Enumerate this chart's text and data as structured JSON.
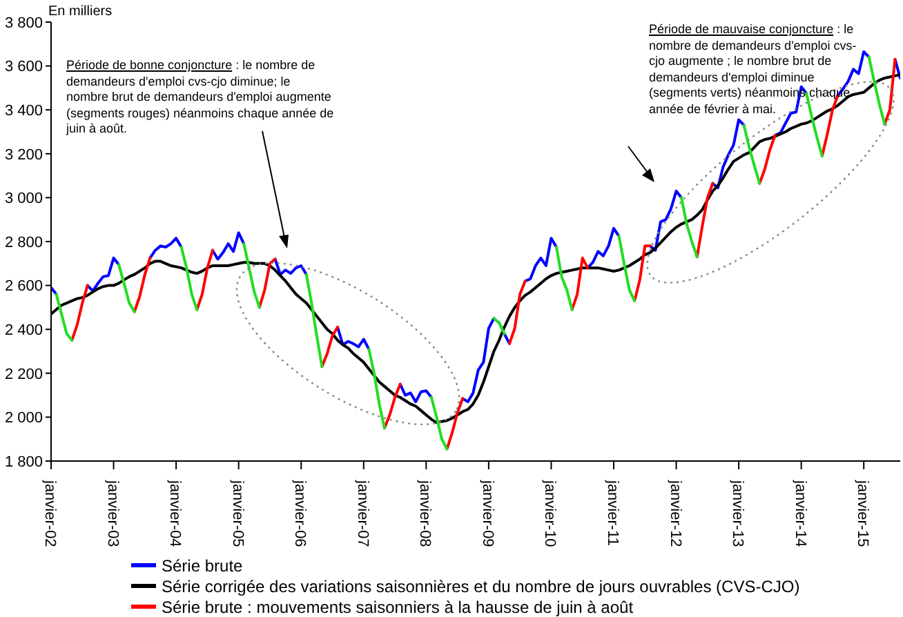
{
  "chart_data": {
    "type": "line",
    "categories": [
      "janvier-02",
      null,
      null,
      null,
      null,
      null,
      null,
      null,
      null,
      null,
      null,
      null,
      "janvier-03",
      null,
      null,
      null,
      null,
      null,
      null,
      null,
      null,
      null,
      null,
      null,
      "janvier-04",
      null,
      null,
      null,
      null,
      null,
      null,
      null,
      null,
      null,
      null,
      null,
      "janvier-05",
      null,
      null,
      null,
      null,
      null,
      null,
      null,
      null,
      null,
      null,
      null,
      "janvier-06",
      null,
      null,
      null,
      null,
      null,
      null,
      null,
      null,
      null,
      null,
      null,
      "janvier-07",
      null,
      null,
      null,
      null,
      null,
      null,
      null,
      null,
      null,
      null,
      null,
      "janvier-08",
      null,
      null,
      null,
      null,
      null,
      null,
      null,
      null,
      null,
      null,
      null,
      "janvier-09",
      null,
      null,
      null,
      null,
      null,
      null,
      null,
      null,
      null,
      null,
      null,
      "janvier-10",
      null,
      null,
      null,
      null,
      null,
      null,
      null,
      null,
      null,
      null,
      null,
      "janvier-11",
      null,
      null,
      null,
      null,
      null,
      null,
      null,
      null,
      null,
      null,
      null,
      "janvier-12",
      null,
      null,
      null,
      null,
      null,
      null,
      null,
      null,
      null,
      null,
      null,
      "janvier-13",
      null,
      null,
      null,
      null,
      null,
      null,
      null,
      null,
      null,
      null,
      null,
      "janvier-14",
      null,
      null,
      null,
      null,
      null,
      null,
      null,
      null,
      null,
      null,
      null,
      "janvier-15",
      null,
      null,
      null,
      null,
      null,
      null,
      null
    ],
    "series": [
      {
        "name": "Série brute",
        "color": "#0000ff",
        "values": [
          2590,
          2560,
          null,
          null,
          null,
          null,
          null,
          2600,
          2575,
          2610,
          2640,
          2645,
          2725,
          2695,
          null,
          null,
          null,
          null,
          null,
          2725,
          2760,
          2780,
          2775,
          2790,
          2815,
          2775,
          null,
          null,
          null,
          null,
          null,
          2760,
          2720,
          2750,
          2790,
          2755,
          2840,
          2790,
          null,
          null,
          null,
          null,
          null,
          2720,
          2650,
          2670,
          2655,
          2680,
          2690,
          2650,
          null,
          null,
          null,
          null,
          null,
          2410,
          2330,
          2345,
          2335,
          2320,
          2355,
          2310,
          null,
          null,
          null,
          null,
          null,
          2150,
          2100,
          2110,
          2070,
          2115,
          2120,
          2090,
          null,
          null,
          null,
          null,
          null,
          2085,
          2070,
          2110,
          2215,
          2250,
          2405,
          2450,
          null,
          2380,
          2335,
          null,
          null,
          2620,
          2630,
          2690,
          2725,
          2690,
          2815,
          2775,
          null,
          null,
          null,
          null,
          null,
          2680,
          2705,
          2755,
          2735,
          2780,
          2860,
          2825,
          null,
          null,
          null,
          null,
          null,
          2780,
          2760,
          2890,
          2900,
          2950,
          3030,
          3000,
          null,
          null,
          null,
          null,
          null,
          3065,
          3045,
          3140,
          3195,
          3240,
          3355,
          3330,
          null,
          null,
          null,
          null,
          null,
          3285,
          3295,
          3340,
          3385,
          3390,
          3505,
          3475,
          null,
          null,
          null,
          null,
          null,
          3465,
          3495,
          3530,
          3585,
          3565,
          3665,
          3640,
          null,
          null,
          null,
          null,
          3630,
          3545
        ]
      },
      {
        "name": "Série corrigée des variations saisonnières et du nombre de jours ouvrables (CVS-CJO)",
        "color": "#000000",
        "values": [
          2470,
          2490,
          2510,
          2520,
          2530,
          2540,
          2545,
          2555,
          2570,
          2585,
          2595,
          2600,
          2600,
          2610,
          2625,
          2640,
          2650,
          2665,
          2680,
          2700,
          2710,
          2710,
          2700,
          2690,
          2685,
          2680,
          2670,
          2660,
          2655,
          2665,
          2680,
          2690,
          2690,
          2690,
          2690,
          2695,
          2700,
          2705,
          2705,
          2700,
          2700,
          2700,
          2690,
          2670,
          2645,
          2620,
          2590,
          2560,
          2540,
          2520,
          2490,
          2460,
          2430,
          2400,
          2380,
          2350,
          2330,
          2315,
          2290,
          2270,
          2250,
          2220,
          2190,
          2160,
          2140,
          2120,
          2100,
          2090,
          2075,
          2060,
          2050,
          2030,
          2010,
          1990,
          1975,
          1980,
          1985,
          1995,
          2010,
          2025,
          2035,
          2060,
          2100,
          2160,
          2230,
          2300,
          2350,
          2410,
          2460,
          2500,
          2530,
          2555,
          2570,
          2590,
          2610,
          2630,
          2645,
          2655,
          2660,
          2665,
          2670,
          2675,
          2680,
          2680,
          2680,
          2680,
          2675,
          2670,
          2665,
          2670,
          2680,
          2690,
          2705,
          2720,
          2740,
          2750,
          2770,
          2795,
          2820,
          2845,
          2865,
          2880,
          2890,
          2900,
          2920,
          2945,
          2990,
          3030,
          3055,
          3090,
          3130,
          3165,
          3180,
          3195,
          3205,
          3230,
          3255,
          3265,
          3270,
          3280,
          3290,
          3300,
          3315,
          3325,
          3335,
          3340,
          3350,
          3365,
          3380,
          3395,
          3405,
          3420,
          3440,
          3460,
          3470,
          3475,
          3480,
          3500,
          3520,
          3535,
          3545,
          3550,
          3555,
          3560
        ]
      },
      {
        "name": "Série brute : mouvements saisonniers à la hausse de juin à août",
        "color": "#ff0000",
        "values": [
          null,
          null,
          null,
          null,
          2350,
          2420,
          2520,
          2600,
          null,
          null,
          null,
          null,
          null,
          null,
          null,
          null,
          2480,
          2550,
          2650,
          2725,
          null,
          null,
          null,
          null,
          null,
          null,
          null,
          null,
          2490,
          2560,
          2680,
          2760,
          null,
          null,
          null,
          null,
          null,
          null,
          null,
          null,
          2500,
          2580,
          2700,
          2720,
          null,
          null,
          null,
          null,
          null,
          null,
          null,
          null,
          2230,
          2290,
          2370,
          2410,
          null,
          null,
          null,
          null,
          null,
          null,
          null,
          null,
          1950,
          2010,
          2090,
          2150,
          null,
          null,
          null,
          null,
          null,
          null,
          null,
          null,
          1855,
          1930,
          2020,
          2085,
          null,
          null,
          null,
          null,
          null,
          null,
          null,
          null,
          2335,
          2405,
          2560,
          2620,
          null,
          null,
          null,
          null,
          null,
          null,
          null,
          null,
          2490,
          2560,
          2725,
          2680,
          null,
          null,
          null,
          null,
          null,
          null,
          null,
          null,
          2530,
          2625,
          2780,
          2780,
          null,
          null,
          null,
          null,
          null,
          null,
          null,
          null,
          2730,
          2870,
          3000,
          3065,
          null,
          null,
          null,
          null,
          null,
          null,
          null,
          null,
          3065,
          3130,
          3220,
          3285,
          null,
          null,
          null,
          null,
          null,
          null,
          null,
          null,
          3190,
          3290,
          3400,
          3465,
          null,
          null,
          null,
          null,
          null,
          null,
          null,
          null,
          3335,
          3400,
          3630,
          null
        ]
      },
      {
        "color": "#22dd22",
        "values": [
          null,
          2560,
          2470,
          2380,
          2350,
          null,
          null,
          null,
          null,
          null,
          null,
          null,
          null,
          2695,
          2610,
          2520,
          2480,
          null,
          null,
          null,
          null,
          null,
          null,
          null,
          null,
          2775,
          2680,
          2560,
          2490,
          null,
          null,
          null,
          null,
          null,
          null,
          null,
          null,
          2790,
          2680,
          2570,
          2500,
          null,
          null,
          null,
          null,
          null,
          null,
          null,
          null,
          2650,
          2520,
          2370,
          2230,
          null,
          null,
          null,
          null,
          null,
          null,
          null,
          null,
          2310,
          2200,
          2060,
          1950,
          null,
          null,
          null,
          null,
          null,
          null,
          null,
          null,
          2090,
          2000,
          1900,
          1855,
          null,
          null,
          null,
          null,
          null,
          null,
          null,
          null,
          2450,
          2430,
          2380,
          null,
          null,
          null,
          null,
          null,
          null,
          null,
          null,
          null,
          2775,
          2640,
          2580,
          2490,
          null,
          null,
          null,
          null,
          null,
          null,
          null,
          null,
          2825,
          2700,
          2580,
          2530,
          null,
          null,
          null,
          null,
          null,
          null,
          null,
          null,
          3000,
          2880,
          2800,
          2730,
          null,
          null,
          null,
          null,
          null,
          null,
          null,
          null,
          3330,
          3230,
          3145,
          3065,
          null,
          null,
          null,
          null,
          null,
          null,
          null,
          null,
          3475,
          3370,
          3275,
          3190,
          null,
          null,
          null,
          null,
          null,
          null,
          null,
          null,
          3640,
          3530,
          3425,
          3335,
          null,
          null,
          null
        ]
      }
    ],
    "ylim": [
      1800,
      3800
    ],
    "yticks": [
      {
        "value": 1800,
        "label": "1 800"
      },
      {
        "value": 2000,
        "label": "2 000"
      },
      {
        "value": 2200,
        "label": "2 200"
      },
      {
        "value": 2400,
        "label": "2 400"
      },
      {
        "value": 2600,
        "label": "2 600"
      },
      {
        "value": 2800,
        "label": "2 800"
      },
      {
        "value": 3000,
        "label": "3 000"
      },
      {
        "value": 3200,
        "label": "3 200"
      },
      {
        "value": 3400,
        "label": "3 400"
      },
      {
        "value": 3600,
        "label": "3 600"
      },
      {
        "value": 3800,
        "label": "3 800"
      }
    ],
    "grid": false,
    "marker": "none",
    "legend": "bottom",
    "annotations": [
      "En milliers",
      "Période de bonne conjoncture : le nombre de demandeurs d'emploi cvs-cjo diminue; le nombre brut de demandeurs d'emploi augmente (segments rouges) néanmoins chaque année de juin à août.",
      "Période de mauvaise conjoncture : le nombre de demandeurs d'emploi cvs-cjo augmente ; le nombre brut de demandeurs d'emploi diminue (segments verts) néanmoins chaque année de février à mai."
    ]
  }
}
